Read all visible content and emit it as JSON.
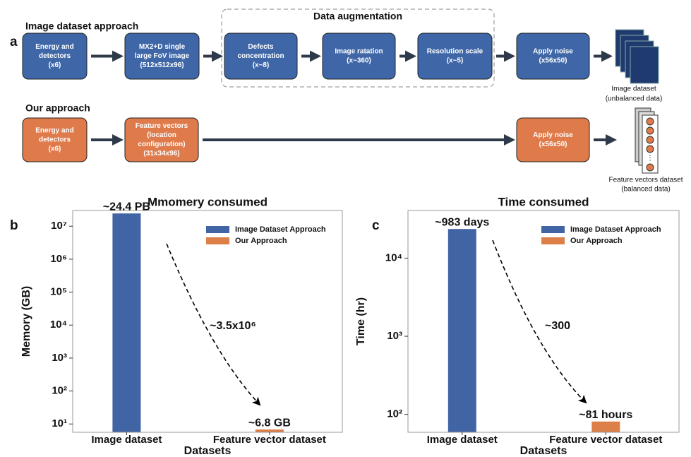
{
  "panel_a": {
    "label": "a",
    "group_title": "Data augmentation",
    "rows": [
      {
        "title": "Image dataset approach",
        "color": "#3f67a8",
        "boxes": [
          {
            "lines": [
              "Energy and",
              "detectors",
              "(x6)"
            ]
          },
          {
            "lines": [
              "MX2+D single",
              "large FoV image",
              "(512x512x96)"
            ]
          },
          {
            "lines": [
              "Defects",
              "concentration",
              "(x~8)"
            ]
          },
          {
            "lines": [
              "Image ratation",
              "(x~360)"
            ]
          },
          {
            "lines": [
              "Resolution scale",
              "(x~5)"
            ]
          },
          {
            "lines": [
              "Apply noise",
              "(x56x50)"
            ]
          }
        ],
        "output": [
          "Image dataset",
          "(unbalanced data)"
        ]
      },
      {
        "title": "Our approach",
        "color": "#df7a4a",
        "boxes": [
          {
            "lines": [
              "Energy and",
              "detectors",
              "(x6)"
            ]
          },
          {
            "lines": [
              "Feature vectors",
              "(location",
              "configuration)",
              "(31x34x96)"
            ]
          },
          {
            "lines": [
              "Apply noise",
              "(x56x50)"
            ]
          }
        ],
        "output": [
          "Feature vectors dataset",
          "(balanced data)"
        ]
      }
    ]
  },
  "chart_data": [
    {
      "type": "bar",
      "panel": "b",
      "title": "Mmomery consumed",
      "x_label": "Datasets",
      "y_label": "Memory (GB)",
      "categories": [
        "Image dataset",
        "Feature vector dataset"
      ],
      "series": [
        {
          "name": "Image Dataset Approach",
          "color": "#4165a4",
          "values": [
            24400000,
            null
          ],
          "value_labels": [
            "~24.4 PB",
            null
          ]
        },
        {
          "name": "Our Approach",
          "color": "#dd7f49",
          "values": [
            null,
            6.8
          ],
          "value_labels": [
            null,
            "~6.8 GB"
          ]
        }
      ],
      "log_scale": true,
      "ylim": [
        5.6,
        30000000
      ],
      "yticks": [
        {
          "value": 10,
          "label": "10¹"
        },
        {
          "value": 100,
          "label": "10²"
        },
        {
          "value": 1000,
          "label": "10³"
        },
        {
          "value": 10000,
          "label": "10⁴"
        },
        {
          "value": 100000,
          "label": "10⁵"
        },
        {
          "value": 1000000,
          "label": "10⁶"
        },
        {
          "value": 10000000,
          "label": "10⁷"
        }
      ],
      "annotation": "~3.5x10⁶",
      "legend": "upper right"
    },
    {
      "type": "bar",
      "panel": "c",
      "title": "Time consumed",
      "x_label": "Datasets",
      "y_label": "Time (hr)",
      "categories": [
        "Image dataset",
        "Feature vector dataset"
      ],
      "series": [
        {
          "name": "Image Dataset Approach",
          "color": "#4165a4",
          "values": [
            23592,
            null
          ],
          "value_labels": [
            "~983 days",
            null
          ]
        },
        {
          "name": "Our Approach",
          "color": "#dd7f49",
          "values": [
            null,
            81
          ],
          "value_labels": [
            null,
            "~81 hours"
          ]
        }
      ],
      "log_scale": true,
      "ylim": [
        59,
        40700
      ],
      "yticks": [
        {
          "value": 100,
          "label": "10²"
        },
        {
          "value": 1000,
          "label": "10³"
        },
        {
          "value": 10000,
          "label": "10⁴"
        }
      ],
      "annotation": "~300",
      "legend": "upper right"
    }
  ]
}
